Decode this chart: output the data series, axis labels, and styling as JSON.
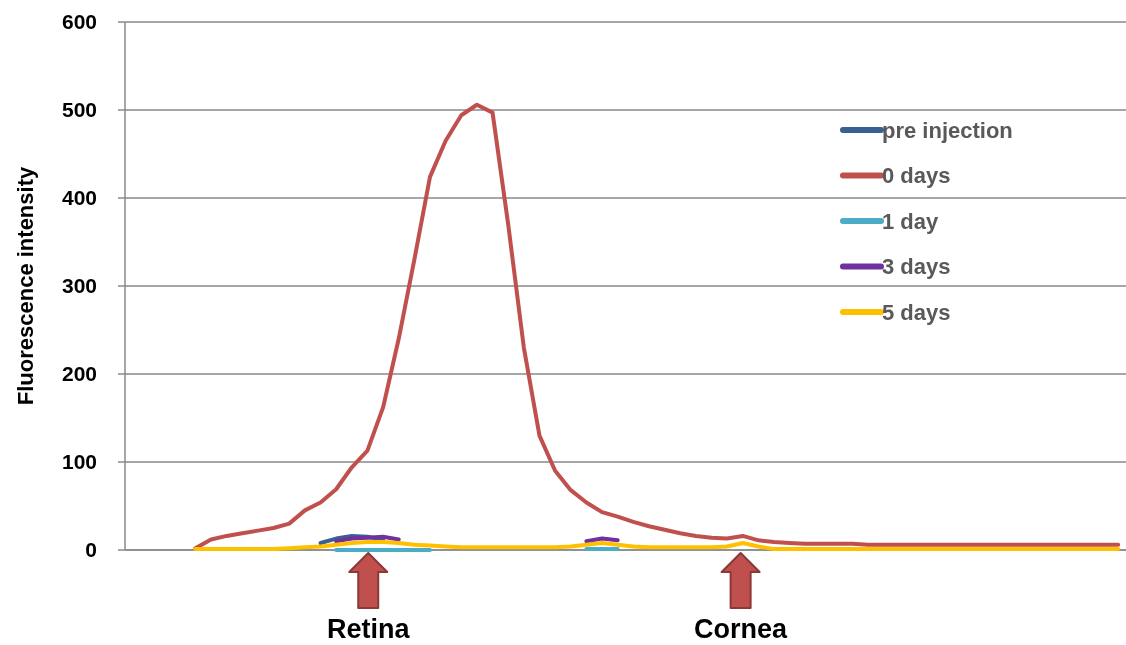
{
  "chart_data": {
    "type": "line",
    "ylabel": "Fluorescence intensity",
    "categories": [
      null,
      null,
      null,
      null,
      null,
      null,
      null,
      null,
      null,
      null,
      null,
      null,
      null,
      null,
      null,
      null,
      null,
      null,
      null,
      null,
      null,
      null,
      null,
      null,
      null,
      null,
      null,
      null,
      null,
      null,
      null,
      null,
      null,
      null,
      null,
      null,
      null,
      null,
      null,
      null,
      null,
      null,
      null,
      null,
      null,
      null,
      null,
      null,
      null,
      null,
      null,
      null,
      null,
      null,
      null,
      null,
      null,
      null,
      null,
      null,
      null,
      null,
      null,
      null
    ],
    "series": [
      {
        "name": "pre injection",
        "color": "#3a5f91",
        "values": [
          null,
          null,
          null,
          null,
          null,
          null,
          null,
          null,
          null,
          null,
          null,
          null,
          8,
          13,
          16,
          15,
          12,
          null,
          null,
          null,
          null,
          null,
          null,
          null,
          null,
          null,
          null,
          null,
          null,
          null,
          null,
          null,
          null,
          null,
          null,
          null,
          null,
          null,
          null,
          null,
          null,
          null,
          null,
          null,
          null,
          null,
          null,
          null,
          null,
          null,
          null,
          null,
          null,
          null,
          null,
          null,
          null,
          null,
          null,
          null,
          null,
          null,
          null,
          null
        ]
      },
      {
        "name": "0 days",
        "color": "#c0504d",
        "values": [
          null,
          null,
          null,
          null,
          2,
          12,
          16,
          19,
          22,
          25,
          30,
          45,
          54,
          69,
          94,
          113,
          162,
          240,
          330,
          424,
          465,
          494,
          506,
          497,
          370,
          230,
          130,
          90,
          68,
          54,
          43,
          38,
          32,
          27,
          23,
          19,
          16,
          14,
          13,
          16,
          11,
          9,
          8,
          7,
          7,
          7,
          7,
          6,
          6,
          6,
          6,
          6,
          6,
          6,
          6,
          6,
          6,
          6,
          6,
          6,
          6,
          6,
          6,
          6
        ]
      },
      {
        "name": "1 day",
        "color": "#4bacc6",
        "values": [
          null,
          null,
          null,
          null,
          null,
          null,
          null,
          null,
          null,
          null,
          null,
          null,
          null,
          0,
          0,
          0,
          0,
          0,
          0,
          0,
          null,
          null,
          null,
          null,
          null,
          null,
          null,
          null,
          null,
          1,
          1,
          1,
          null,
          null,
          null,
          null,
          null,
          null,
          null,
          null,
          null,
          null,
          null,
          null,
          null,
          null,
          null,
          null,
          null,
          null,
          null,
          null,
          null,
          null,
          null,
          null,
          null,
          null,
          null,
          null,
          null,
          null,
          null,
          null
        ]
      },
      {
        "name": "3 days",
        "color": "#7030a0",
        "values": [
          null,
          null,
          null,
          null,
          null,
          null,
          null,
          null,
          null,
          null,
          null,
          null,
          null,
          10,
          13,
          14,
          15,
          12,
          null,
          null,
          null,
          null,
          null,
          null,
          null,
          null,
          null,
          null,
          null,
          10,
          13,
          11,
          null,
          null,
          null,
          null,
          null,
          null,
          null,
          null,
          null,
          null,
          null,
          null,
          null,
          null,
          null,
          null,
          null,
          null,
          null,
          null,
          null,
          null,
          null,
          null,
          null,
          null,
          null,
          null,
          null,
          null,
          null,
          null
        ]
      },
      {
        "name": "5 days",
        "color": "#ffc000",
        "values": [
          null,
          null,
          null,
          null,
          1,
          1,
          1,
          1,
          1,
          1,
          2,
          3,
          4,
          6,
          8,
          9,
          9,
          8,
          6,
          5,
          4,
          3,
          3,
          3,
          3,
          3,
          3,
          3,
          4,
          6,
          8,
          6,
          4,
          3,
          3,
          3,
          3,
          3,
          4,
          8,
          4,
          1,
          1,
          1,
          1,
          1,
          1,
          1,
          1,
          1,
          1,
          1,
          1,
          1,
          1,
          1,
          1,
          1,
          1,
          1,
          1,
          1,
          1,
          1
        ]
      }
    ],
    "ylim": [
      0,
      600
    ],
    "yticks": [
      0,
      100,
      200,
      300,
      400,
      500,
      600
    ],
    "grid": "y",
    "legend": "top right",
    "tick_labels": "y",
    "line_style": "solid",
    "marker": "none",
    "annotations": [
      "Retina",
      "Cornea"
    ]
  }
}
